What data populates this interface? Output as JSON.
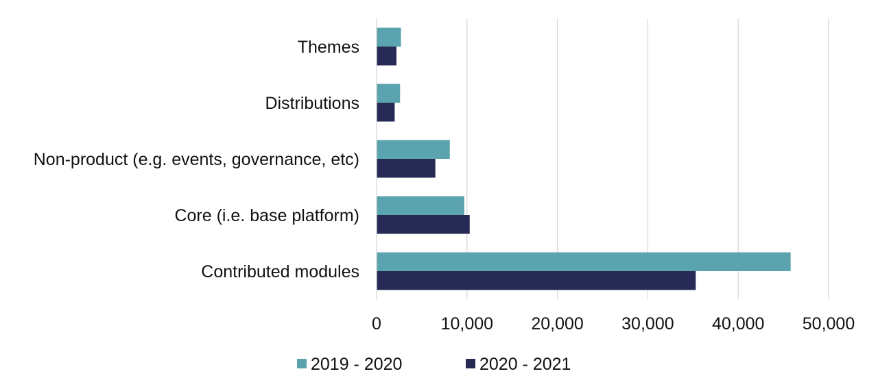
{
  "chart_data": {
    "type": "bar",
    "orientation": "horizontal",
    "categories": [
      "Themes",
      "Distributions",
      "Non-product (e.g. events, governance, etc)",
      "Core (i.e. base platform)",
      "Contributed modules"
    ],
    "series": [
      {
        "name": "2019 - 2020",
        "color": "#5ba3ae",
        "values": [
          2700,
          2600,
          8100,
          9700,
          45800
        ]
      },
      {
        "name": "2020 - 2021",
        "color": "#262a55",
        "values": [
          2200,
          2000,
          6500,
          10300,
          35300
        ]
      }
    ],
    "xlim": [
      0,
      50000
    ],
    "xticks": [
      0,
      10000,
      20000,
      30000,
      40000,
      50000
    ],
    "xtick_labels": [
      "0",
      "10,000",
      "20,000",
      "30,000",
      "40,000",
      "50,000"
    ],
    "grid": true,
    "legend_position": "bottom",
    "title": "",
    "xlabel": "",
    "ylabel": ""
  }
}
